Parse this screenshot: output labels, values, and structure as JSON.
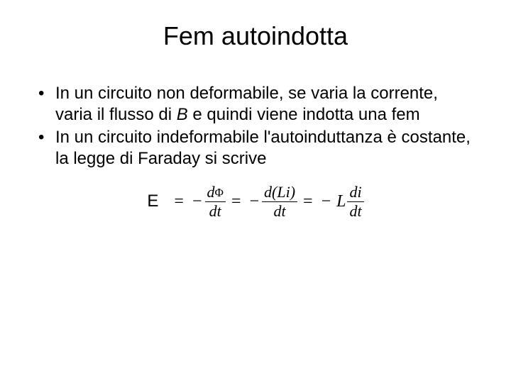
{
  "slide": {
    "title": "Fem autoindotta",
    "bullets": [
      {
        "pre": "In un circuito non deformabile, se varia la corrente, varia il flusso di ",
        "em": "B",
        "post": " e quindi viene indotta una fem"
      },
      {
        "pre": "In un circuito indeformabile l'autoinduttanza è costante, la legge di Faraday si scrive",
        "em": "",
        "post": ""
      }
    ],
    "equation": {
      "lhs": "E",
      "eq": "=",
      "minus": "−",
      "frac1_num_d": "d",
      "frac1_num_phi": "Φ",
      "frac1_den": "dt",
      "frac2_num": "d(Li)",
      "frac2_den": "dt",
      "coef_L": "L",
      "frac3_num": "di",
      "frac3_den": "dt"
    }
  },
  "style": {
    "background_color": "#ffffff",
    "text_color": "#000000",
    "title_fontsize": 36,
    "body_fontsize": 24,
    "equation_fontsize": 24,
    "font_family_body": "Arial",
    "font_family_math": "Times New Roman"
  }
}
